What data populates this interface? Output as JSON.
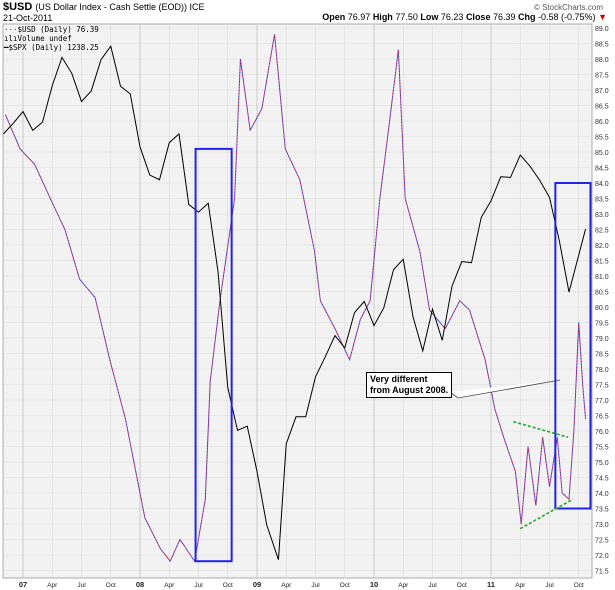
{
  "header": {
    "symbol": "$USD",
    "title": "(US Dollar Index - Cash Settle (EOD)) ICE",
    "date": "21-Oct-2011",
    "copyright": "© StockCharts.com",
    "open_label": "Open",
    "open": "76.97",
    "high_label": "High",
    "high": "77.50",
    "low_label": "Low",
    "low": "76.23",
    "close_label": "Close",
    "close": "76.39",
    "chg_label": "Chg",
    "chg": "-0.58 (-0.75%)",
    "chg_arrow": "▼"
  },
  "legend": {
    "usd": "$USD (Daily) 76.39",
    "volume": "Volume undef",
    "spx": "$SPX (Daily) 1238.25"
  },
  "annotation": {
    "line1": "Very different",
    "line2": "from August 2008."
  },
  "colors": {
    "usd_a": "#3333cc",
    "usd_b": "#cc3366",
    "spx": "#000000",
    "box": "#2222ee",
    "trend": "#22aa22",
    "grid": "#d8dcd8",
    "bg": "#f2f2f2"
  },
  "chart_data": {
    "type": "line",
    "title": "$USD (US Dollar Index - Cash Settle (EOD)) ICE",
    "x_unit": "months since Jan 2007",
    "ylim": [
      71.5,
      89.0
    ],
    "ytick_step": 0.5,
    "xticks": [
      {
        "m": 0,
        "label": "07",
        "major": true
      },
      {
        "m": 3,
        "label": "Apr"
      },
      {
        "m": 6,
        "label": "Jul"
      },
      {
        "m": 9,
        "label": "Oct"
      },
      {
        "m": 12,
        "label": "08",
        "major": true
      },
      {
        "m": 15,
        "label": "Apr"
      },
      {
        "m": 18,
        "label": "Jul"
      },
      {
        "m": 21,
        "label": "Oct"
      },
      {
        "m": 24,
        "label": "09",
        "major": true
      },
      {
        "m": 27,
        "label": "Apr"
      },
      {
        "m": 30,
        "label": "Jul"
      },
      {
        "m": 33,
        "label": "Oct"
      },
      {
        "m": 36,
        "label": "10",
        "major": true
      },
      {
        "m": 39,
        "label": "Apr"
      },
      {
        "m": 42,
        "label": "Jul"
      },
      {
        "m": 45,
        "label": "Oct"
      },
      {
        "m": 48,
        "label": "11",
        "major": true
      },
      {
        "m": 51,
        "label": "Apr"
      },
      {
        "m": 54,
        "label": "Jul"
      },
      {
        "m": 57,
        "label": "Oct"
      }
    ],
    "series": [
      {
        "name": "$USD (Daily)",
        "axis": "price",
        "points": [
          [
            -1.8,
            86.2
          ],
          [
            -0.3,
            85.1
          ],
          [
            1.2,
            84.6
          ],
          [
            2.8,
            83.5
          ],
          [
            4.3,
            82.5
          ],
          [
            5.8,
            80.9
          ],
          [
            7.4,
            80.3
          ],
          [
            8.9,
            78.3
          ],
          [
            10.5,
            76.4
          ],
          [
            11.5,
            74.8
          ],
          [
            12.5,
            73.2
          ],
          [
            14.1,
            72.2
          ],
          [
            15.1,
            71.8
          ],
          [
            16.1,
            72.5
          ],
          [
            17.6,
            71.8
          ],
          [
            18.7,
            73.8
          ],
          [
            19.2,
            77.6
          ],
          [
            20.2,
            80.2
          ],
          [
            21.7,
            83.5
          ],
          [
            22.3,
            88.0
          ],
          [
            23.3,
            85.7
          ],
          [
            24.5,
            86.4
          ],
          [
            25.8,
            88.8
          ],
          [
            26.9,
            85.1
          ],
          [
            28.4,
            84.1
          ],
          [
            29.9,
            81.8
          ],
          [
            30.5,
            80.2
          ],
          [
            32.0,
            79.3
          ],
          [
            33.5,
            78.3
          ],
          [
            34.6,
            79.6
          ],
          [
            35.6,
            80.2
          ],
          [
            36.6,
            83.5
          ],
          [
            37.6,
            86.0
          ],
          [
            38.5,
            88.3
          ],
          [
            39.2,
            83.5
          ],
          [
            40.7,
            81.8
          ],
          [
            41.7,
            79.9
          ],
          [
            43.3,
            79.3
          ],
          [
            44.8,
            80.2
          ],
          [
            45.8,
            79.9
          ],
          [
            47.4,
            78.3
          ],
          [
            48.4,
            76.7
          ],
          [
            49.4,
            75.7
          ],
          [
            50.5,
            74.7
          ],
          [
            51.1,
            73.0
          ],
          [
            51.8,
            75.5
          ],
          [
            52.6,
            73.6
          ],
          [
            53.3,
            75.8
          ],
          [
            54.0,
            74.2
          ],
          [
            54.8,
            75.8
          ],
          [
            55.3,
            74.0
          ],
          [
            56.0,
            73.8
          ],
          [
            56.5,
            76.0
          ],
          [
            57.0,
            79.5
          ],
          [
            57.4,
            77.5
          ],
          [
            57.7,
            76.39
          ]
        ]
      },
      {
        "name": "$SPX (Daily)",
        "axis": "hidden",
        "ylim": [
          650,
          1580
        ],
        "points": [
          [
            -2,
            1400
          ],
          [
            -1,
            1418
          ],
          [
            0,
            1438
          ],
          [
            1,
            1406
          ],
          [
            2,
            1420
          ],
          [
            3,
            1482
          ],
          [
            4,
            1530
          ],
          [
            5,
            1503
          ],
          [
            6,
            1455
          ],
          [
            7,
            1473
          ],
          [
            8,
            1526
          ],
          [
            9,
            1549
          ],
          [
            10,
            1481
          ],
          [
            11,
            1468
          ],
          [
            12,
            1378
          ],
          [
            13,
            1330
          ],
          [
            14,
            1322
          ],
          [
            15,
            1385
          ],
          [
            16,
            1400
          ],
          [
            17,
            1280
          ],
          [
            18,
            1267
          ],
          [
            19,
            1282
          ],
          [
            20,
            1166
          ],
          [
            21,
            969
          ],
          [
            22,
            896
          ],
          [
            23,
            903
          ],
          [
            24,
            826
          ],
          [
            25,
            735
          ],
          [
            26.2,
            676
          ],
          [
            27,
            873
          ],
          [
            28,
            919
          ],
          [
            29,
            919
          ],
          [
            30,
            987
          ],
          [
            31,
            1021
          ],
          [
            32,
            1057
          ],
          [
            33,
            1036
          ],
          [
            34,
            1096
          ],
          [
            35,
            1115
          ],
          [
            36,
            1074
          ],
          [
            37,
            1104
          ],
          [
            38,
            1169
          ],
          [
            39,
            1187
          ],
          [
            40,
            1089
          ],
          [
            41,
            1031
          ],
          [
            42,
            1102
          ],
          [
            43,
            1049
          ],
          [
            44,
            1141
          ],
          [
            45,
            1183
          ],
          [
            46,
            1181
          ],
          [
            47,
            1258
          ],
          [
            48,
            1286
          ],
          [
            49,
            1327
          ],
          [
            50,
            1326
          ],
          [
            51,
            1364
          ],
          [
            52,
            1345
          ],
          [
            53,
            1321
          ],
          [
            54,
            1292
          ],
          [
            55,
            1219
          ],
          [
            56,
            1131
          ],
          [
            57.7,
            1238.25
          ]
        ]
      }
    ],
    "annotations": {
      "boxes": [
        {
          "from_m": 17.7,
          "to_m": 21.4,
          "top": 85.1,
          "bottom": 71.8
        },
        {
          "from_m": 54.6,
          "to_m": 58.2,
          "top": 84.0,
          "bottom": 73.5
        }
      ],
      "trendlines": [
        {
          "from": [
            50.3,
            76.3
          ],
          "to": [
            55.9,
            75.8
          ]
        },
        {
          "from": [
            51.0,
            72.85
          ],
          "to": [
            56.4,
            73.8
          ]
        }
      ]
    }
  }
}
